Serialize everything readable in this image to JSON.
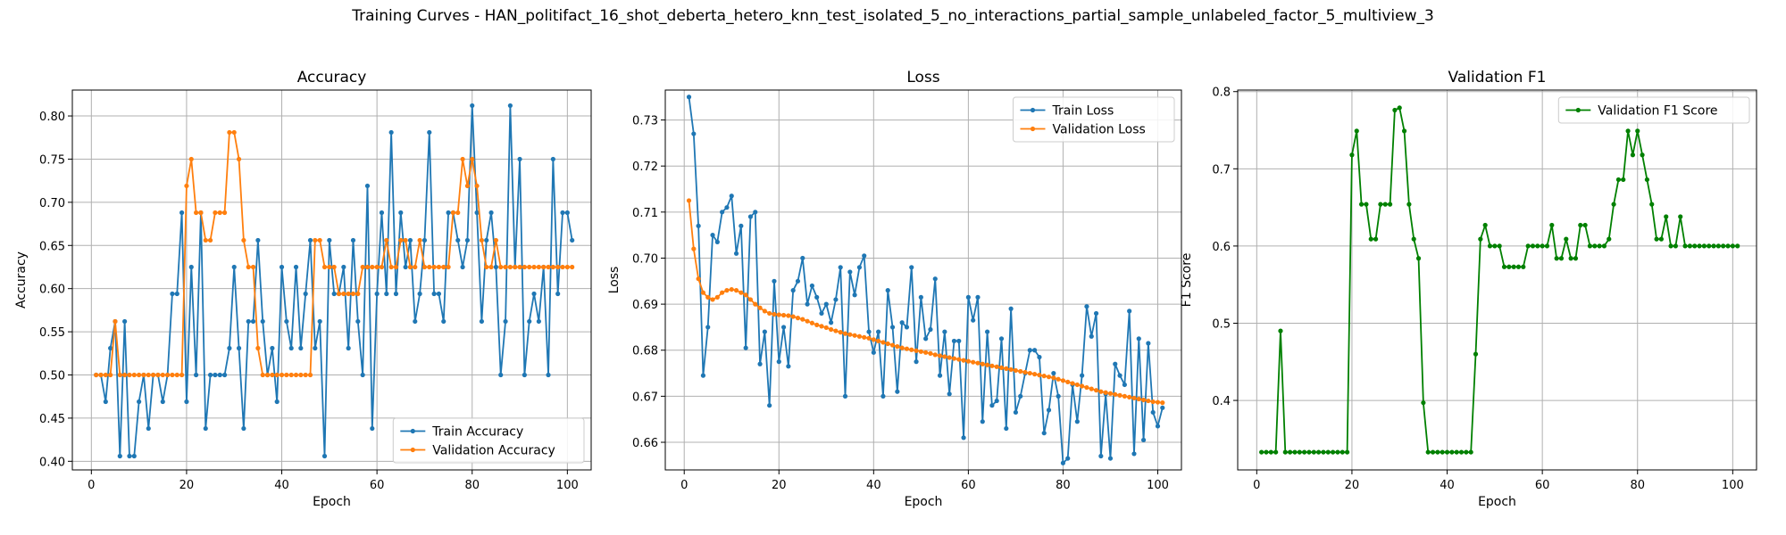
{
  "figure": {
    "title": "Training Curves - HAN_politifact_16_shot_deberta_hetero_knn_test_isolated_5_no_interactions_partial_sample_unlabeled_factor_5_multiview_3"
  },
  "colors": {
    "blue": "#1f77b4",
    "orange": "#ff7f0e",
    "green": "#008000",
    "grid": "#b0b0b0"
  },
  "chart_data": [
    {
      "type": "line",
      "title": "Accuracy",
      "xlabel": "Epoch",
      "ylabel": "Accuracy",
      "xlim": [
        -4,
        105
      ],
      "ylim": [
        0.39,
        0.83
      ],
      "xticks": [
        0,
        20,
        40,
        60,
        80,
        100
      ],
      "yticks": [
        0.4,
        0.45,
        0.5,
        0.55,
        0.6,
        0.65,
        0.7,
        0.75,
        0.8
      ],
      "ytick_labels": [
        "0.40",
        "0.45",
        "0.50",
        "0.55",
        "0.60",
        "0.65",
        "0.70",
        "0.75",
        "0.80"
      ],
      "grid": true,
      "legend": "lower-right",
      "series": [
        {
          "name": "Train Accuracy",
          "color": "#1f77b4",
          "values": [
            0.5,
            0.5,
            0.469,
            0.531,
            0.562,
            0.406,
            0.562,
            0.406,
            0.406,
            0.469,
            0.5,
            0.438,
            0.5,
            0.5,
            0.469,
            0.5,
            0.594,
            0.594,
            0.688,
            0.469,
            0.625,
            0.5,
            0.688,
            0.438,
            0.5,
            0.5,
            0.5,
            0.5,
            0.531,
            0.625,
            0.531,
            0.438,
            0.562,
            0.562,
            0.656,
            0.562,
            0.5,
            0.531,
            0.469,
            0.625,
            0.562,
            0.531,
            0.625,
            0.531,
            0.594,
            0.656,
            0.531,
            0.562,
            0.406,
            0.656,
            0.594,
            0.594,
            0.625,
            0.531,
            0.656,
            0.562,
            0.5,
            0.719,
            0.438,
            0.594,
            0.688,
            0.594,
            0.781,
            0.594,
            0.688,
            0.625,
            0.656,
            0.562,
            0.594,
            0.656,
            0.781,
            0.594,
            0.594,
            0.562,
            0.688,
            0.688,
            0.656,
            0.625,
            0.656,
            0.812,
            0.688,
            0.562,
            0.656,
            0.688,
            0.625,
            0.5,
            0.562,
            0.812,
            0.625,
            0.75,
            0.5,
            0.562,
            0.594,
            0.562,
            0.625,
            0.5,
            0.75,
            0.594,
            0.688,
            0.688,
            0.656
          ]
        },
        {
          "name": "Validation Accuracy",
          "color": "#ff7f0e",
          "values": [
            0.5,
            0.5,
            0.5,
            0.5,
            0.562,
            0.5,
            0.5,
            0.5,
            0.5,
            0.5,
            0.5,
            0.5,
            0.5,
            0.5,
            0.5,
            0.5,
            0.5,
            0.5,
            0.5,
            0.719,
            0.75,
            0.688,
            0.688,
            0.656,
            0.656,
            0.688,
            0.688,
            0.688,
            0.781,
            0.781,
            0.75,
            0.656,
            0.625,
            0.625,
            0.531,
            0.5,
            0.5,
            0.5,
            0.5,
            0.5,
            0.5,
            0.5,
            0.5,
            0.5,
            0.5,
            0.5,
            0.656,
            0.656,
            0.625,
            0.625,
            0.625,
            0.594,
            0.594,
            0.594,
            0.594,
            0.594,
            0.625,
            0.625,
            0.625,
            0.625,
            0.625,
            0.656,
            0.625,
            0.625,
            0.656,
            0.656,
            0.625,
            0.625,
            0.656,
            0.625,
            0.625,
            0.625,
            0.625,
            0.625,
            0.625,
            0.688,
            0.688,
            0.75,
            0.719,
            0.75,
            0.719,
            0.656,
            0.625,
            0.625,
            0.656,
            0.625,
            0.625,
            0.625,
            0.625,
            0.625,
            0.625,
            0.625,
            0.625,
            0.625,
            0.625,
            0.625,
            0.625,
            0.625,
            0.625,
            0.625,
            0.625
          ]
        }
      ]
    },
    {
      "type": "line",
      "title": "Loss",
      "xlabel": "Epoch",
      "ylabel": "Loss",
      "xlim": [
        -4,
        105
      ],
      "ylim": [
        0.654,
        0.7365
      ],
      "xticks": [
        0,
        20,
        40,
        60,
        80,
        100
      ],
      "yticks": [
        0.66,
        0.67,
        0.68,
        0.69,
        0.7,
        0.71,
        0.72,
        0.73
      ],
      "ytick_labels": [
        "0.66",
        "0.67",
        "0.68",
        "0.69",
        "0.70",
        "0.71",
        "0.72",
        "0.73"
      ],
      "grid": true,
      "legend": "upper-right",
      "series": [
        {
          "name": "Train Loss",
          "color": "#1f77b4",
          "values": [
            0.735,
            0.727,
            0.707,
            0.6745,
            0.685,
            0.705,
            0.7035,
            0.71,
            0.711,
            0.7135,
            0.701,
            0.707,
            0.6805,
            0.709,
            0.71,
            0.677,
            0.684,
            0.668,
            0.695,
            0.6775,
            0.685,
            0.6765,
            0.693,
            0.695,
            0.7,
            0.69,
            0.694,
            0.6915,
            0.688,
            0.69,
            0.686,
            0.691,
            0.698,
            0.67,
            0.697,
            0.692,
            0.698,
            0.7005,
            0.684,
            0.6795,
            0.684,
            0.67,
            0.693,
            0.685,
            0.671,
            0.686,
            0.685,
            0.698,
            0.6775,
            0.6915,
            0.6825,
            0.6845,
            0.6955,
            0.6745,
            0.684,
            0.6705,
            0.682,
            0.682,
            0.661,
            0.6915,
            0.6865,
            0.6915,
            0.6645,
            0.684,
            0.668,
            0.669,
            0.6825,
            0.663,
            0.689,
            0.6665,
            0.67,
            0.675,
            0.68,
            0.68,
            0.6785,
            0.662,
            0.667,
            0.675,
            0.67,
            0.6555,
            0.6565,
            0.6725,
            0.6645,
            0.6745,
            0.6895,
            0.683,
            0.688,
            0.657,
            0.6705,
            0.6565,
            0.677,
            0.6745,
            0.6725,
            0.6885,
            0.6575,
            0.6825,
            0.6605,
            0.6815,
            0.6665,
            0.6635,
            0.6675
          ]
        },
        {
          "name": "Validation Loss",
          "color": "#ff7f0e",
          "values": [
            0.7125,
            0.702,
            0.6955,
            0.6925,
            0.6915,
            0.691,
            0.6915,
            0.6925,
            0.693,
            0.6932,
            0.693,
            0.6925,
            0.692,
            0.691,
            0.69,
            0.6892,
            0.6885,
            0.688,
            0.6878,
            0.6877,
            0.6876,
            0.6875,
            0.6873,
            0.687,
            0.6867,
            0.6863,
            0.6859,
            0.6855,
            0.6852,
            0.6849,
            0.6845,
            0.6842,
            0.6839,
            0.6836,
            0.6834,
            0.6832,
            0.683,
            0.6828,
            0.6826,
            0.6823,
            0.682,
            0.6817,
            0.6814,
            0.6811,
            0.6808,
            0.6805,
            0.6803,
            0.6801,
            0.6799,
            0.6797,
            0.6795,
            0.6793,
            0.679,
            0.6788,
            0.6786,
            0.6784,
            0.6782,
            0.678,
            0.6778,
            0.6776,
            0.6774,
            0.6772,
            0.677,
            0.6768,
            0.6766,
            0.6764,
            0.6762,
            0.676,
            0.6758,
            0.6756,
            0.6754,
            0.6752,
            0.675,
            0.6748,
            0.6746,
            0.6744,
            0.6742,
            0.674,
            0.6737,
            0.6734,
            0.6731,
            0.6728,
            0.6725,
            0.6722,
            0.6719,
            0.6716,
            0.6713,
            0.671,
            0.6708,
            0.6706,
            0.6704,
            0.6702,
            0.67,
            0.6698,
            0.6696,
            0.6694,
            0.6692,
            0.669,
            0.6688,
            0.6687,
            0.6686
          ]
        }
      ]
    },
    {
      "type": "line",
      "title": "Validation F1",
      "xlabel": "Epoch",
      "ylabel": "F1 Score",
      "xlim": [
        -4,
        105
      ],
      "ylim": [
        0.31,
        0.802
      ],
      "xticks": [
        0,
        20,
        40,
        60,
        80,
        100
      ],
      "yticks": [
        0.4,
        0.5,
        0.6,
        0.7,
        0.8
      ],
      "ytick_labels": [
        "0.4",
        "0.5",
        "0.6",
        "0.7",
        "0.8"
      ],
      "grid": true,
      "legend": "upper-right",
      "series": [
        {
          "name": "Validation F1 Score",
          "color": "#008000",
          "values": [
            0.333,
            0.333,
            0.333,
            0.333,
            0.49,
            0.333,
            0.333,
            0.333,
            0.333,
            0.333,
            0.333,
            0.333,
            0.333,
            0.333,
            0.333,
            0.333,
            0.333,
            0.333,
            0.333,
            0.718,
            0.749,
            0.654,
            0.654,
            0.609,
            0.609,
            0.654,
            0.654,
            0.654,
            0.776,
            0.779,
            0.749,
            0.654,
            0.609,
            0.584,
            0.397,
            0.333,
            0.333,
            0.333,
            0.333,
            0.333,
            0.333,
            0.333,
            0.333,
            0.333,
            0.333,
            0.46,
            0.609,
            0.627,
            0.6,
            0.6,
            0.6,
            0.573,
            0.573,
            0.573,
            0.573,
            0.573,
            0.6,
            0.6,
            0.6,
            0.6,
            0.6,
            0.627,
            0.584,
            0.584,
            0.609,
            0.584,
            0.584,
            0.627,
            0.627,
            0.6,
            0.6,
            0.6,
            0.6,
            0.609,
            0.654,
            0.686,
            0.686,
            0.749,
            0.718,
            0.749,
            0.718,
            0.686,
            0.654,
            0.609,
            0.609,
            0.638,
            0.6,
            0.6,
            0.638,
            0.6,
            0.6,
            0.6,
            0.6,
            0.6,
            0.6,
            0.6,
            0.6,
            0.6,
            0.6,
            0.6,
            0.6
          ]
        }
      ]
    }
  ]
}
